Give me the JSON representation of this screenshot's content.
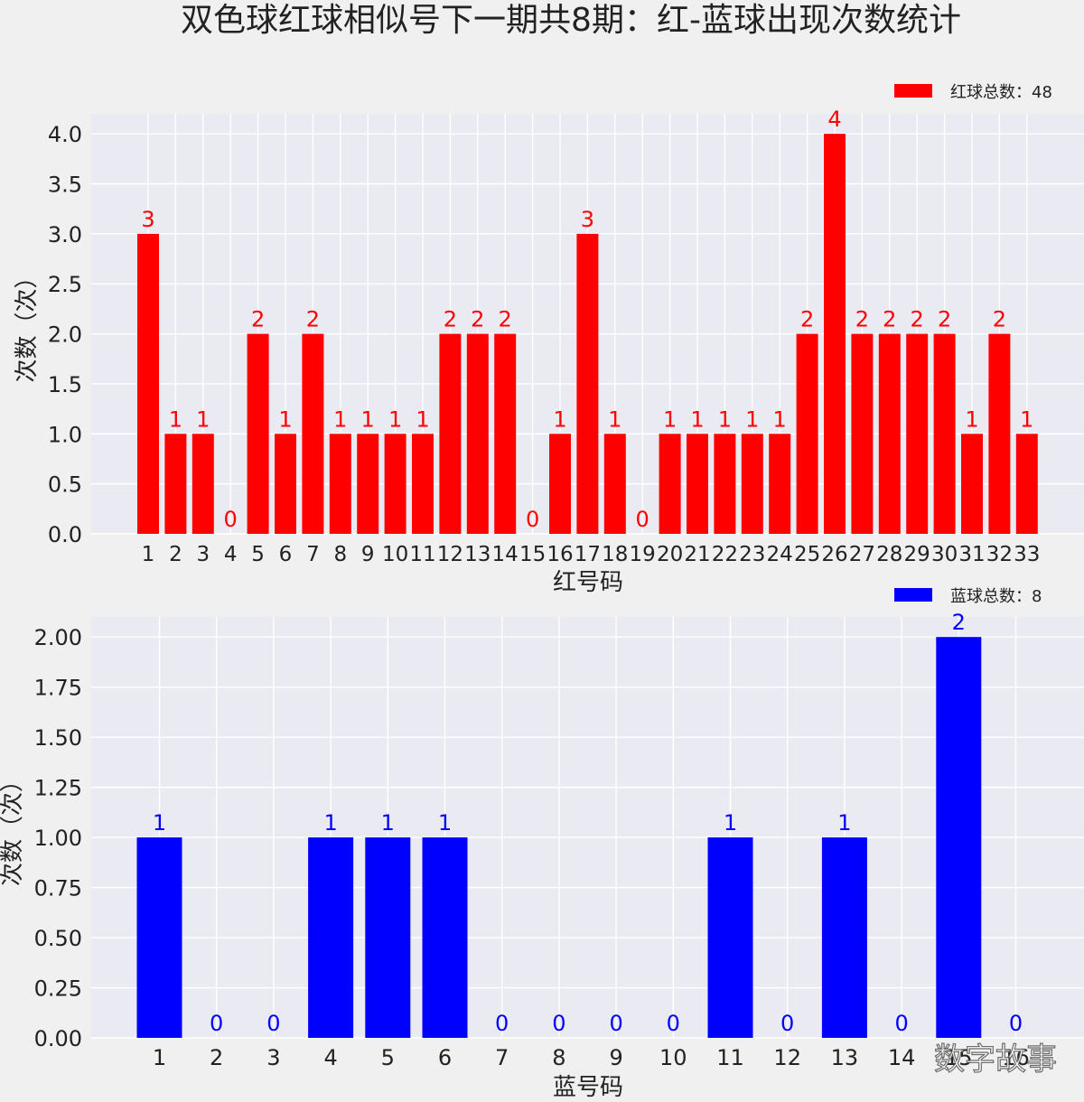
{
  "title": "双色球红球相似号下一期共8期：红-蓝球出现次数统计",
  "watermark": "数字故事",
  "colors": {
    "background": "#f0f0f0",
    "plot_bg": "#eaeaf2",
    "grid": "#ffffff",
    "red": "#ff0000",
    "blue": "#0000ff",
    "text": "#222222"
  },
  "chart_data": [
    {
      "type": "bar",
      "name": "red",
      "categories": [
        "1",
        "2",
        "3",
        "4",
        "5",
        "6",
        "7",
        "8",
        "9",
        "10",
        "11",
        "12",
        "13",
        "14",
        "15",
        "16",
        "17",
        "18",
        "19",
        "20",
        "21",
        "22",
        "23",
        "24",
        "25",
        "26",
        "27",
        "28",
        "29",
        "30",
        "31",
        "32",
        "33"
      ],
      "values": [
        3,
        1,
        1,
        0,
        2,
        1,
        2,
        1,
        1,
        1,
        1,
        2,
        2,
        2,
        0,
        1,
        3,
        1,
        0,
        1,
        1,
        1,
        1,
        1,
        2,
        4,
        2,
        2,
        2,
        2,
        1,
        2,
        1
      ],
      "data_labels": [
        "3",
        "1",
        "1",
        "0",
        "2",
        "1",
        "2",
        "1",
        "1",
        "1",
        "1",
        "2",
        "2",
        "2",
        "0",
        "1",
        "3",
        "1",
        "0",
        "1",
        "1",
        "1",
        "1",
        "1",
        "2",
        "4",
        "2",
        "2",
        "2",
        "2",
        "1",
        "2",
        "1"
      ],
      "yticks": [
        "0.0",
        "0.5",
        "1.0",
        "1.5",
        "2.0",
        "2.5",
        "3.0",
        "3.5",
        "4.0"
      ],
      "ylim": [
        0,
        4.2
      ],
      "xlabel": "红号码",
      "ylabel": "次数（次）",
      "legend": "红球总数：48",
      "legend_position": "top-right",
      "grid": true,
      "color": "#ff0000"
    },
    {
      "type": "bar",
      "name": "blue",
      "categories": [
        "1",
        "2",
        "3",
        "4",
        "5",
        "6",
        "7",
        "8",
        "9",
        "10",
        "11",
        "12",
        "13",
        "14",
        "15",
        "16"
      ],
      "values": [
        1,
        0,
        0,
        1,
        1,
        1,
        0,
        0,
        0,
        0,
        1,
        0,
        1,
        0,
        2,
        0
      ],
      "data_labels": [
        "1",
        "0",
        "0",
        "1",
        "1",
        "1",
        "0",
        "0",
        "0",
        "0",
        "1",
        "0",
        "1",
        "0",
        "2",
        "0"
      ],
      "yticks": [
        "0.00",
        "0.25",
        "0.50",
        "0.75",
        "1.00",
        "1.25",
        "1.50",
        "1.75",
        "2.00"
      ],
      "ylim": [
        0,
        2.1
      ],
      "xlabel": "蓝号码",
      "ylabel": "次数（次）",
      "legend": "蓝球总数：8",
      "legend_position": "top-right",
      "grid": true,
      "color": "#0000ff"
    }
  ]
}
